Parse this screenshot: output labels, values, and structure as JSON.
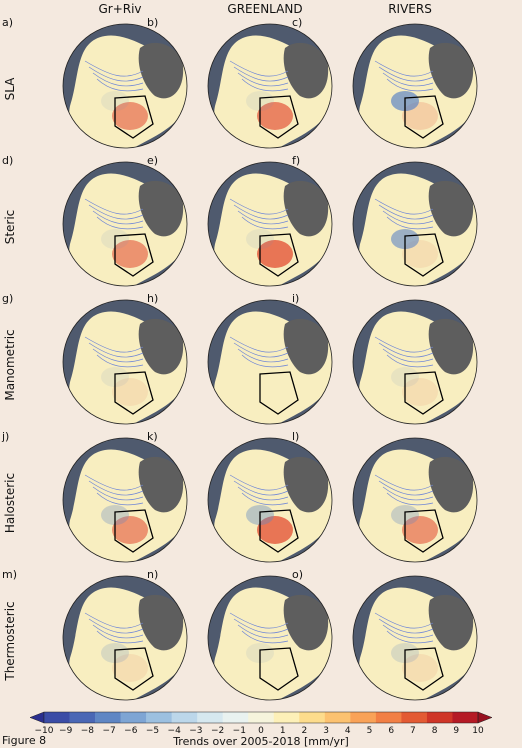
{
  "columns": [
    "Gr+Riv",
    "GREENLAND",
    "RIVERS"
  ],
  "rows": [
    "SLA",
    "Steric",
    "Manometric",
    "Halosteric",
    "Thermosteric"
  ],
  "panel_letters": [
    "a)",
    "b)",
    "c)",
    "d)",
    "e)",
    "f)",
    "g)",
    "h)",
    "i)",
    "j)",
    "k)",
    "l)",
    "m)",
    "n)",
    "o)"
  ],
  "colorbar": {
    "title": "Trends over 2005-2018 [mm/yr]",
    "ticks": [
      "−10",
      "−9",
      "−8",
      "−7",
      "−6",
      "−5",
      "−4",
      "−3",
      "−2",
      "−1",
      "0",
      "1",
      "2",
      "3",
      "4",
      "5",
      "6",
      "7",
      "8",
      "9",
      "10"
    ],
    "colors": [
      "#2b2f8f",
      "#3b4ca6",
      "#4a67b5",
      "#5f86c4",
      "#7ea5d4",
      "#9cc0e0",
      "#bcd7ea",
      "#d6e8ef",
      "#e9f2f0",
      "#f6f4dc",
      "#fdf0b8",
      "#fddc8c",
      "#fcc270",
      "#f9a257",
      "#f27f44",
      "#e35a33",
      "#cf3527",
      "#b51a25",
      "#97101f"
    ]
  },
  "figure_label": "Figure 8",
  "panels": [
    {
      "red": 0.6,
      "blue": 0.1
    },
    {
      "red": 0.7,
      "blue": 0.1
    },
    {
      "red": 0.2,
      "blue": 0.7
    },
    {
      "red": 0.6,
      "blue": 0.1
    },
    {
      "red": 0.8,
      "blue": 0.1
    },
    {
      "red": 0.1,
      "blue": 0.6
    },
    {
      "red": 0.1,
      "blue": 0.1
    },
    {
      "red": 0.05,
      "blue": 0.05
    },
    {
      "red": 0.1,
      "blue": 0.1
    },
    {
      "red": 0.6,
      "blue": 0.3
    },
    {
      "red": 0.8,
      "blue": 0.4
    },
    {
      "red": 0.6,
      "blue": 0.3
    },
    {
      "red": 0.1,
      "blue": 0.2
    },
    {
      "red": 0.05,
      "blue": 0.1
    },
    {
      "red": 0.1,
      "blue": 0.2
    }
  ]
}
